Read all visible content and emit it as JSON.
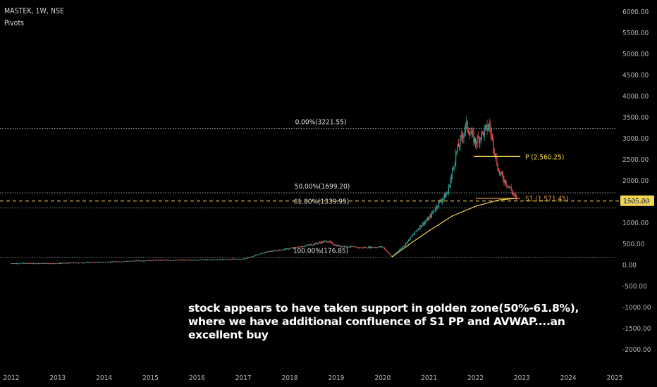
{
  "header": {
    "title": "MASTEK, 1W, NSE",
    "indicator": "Pivots"
  },
  "chart_data": {
    "type": "candlestick",
    "symbol": "MASTEK",
    "timeframe": "1W",
    "exchange": "NSE",
    "y_ticks": [
      "6000.00",
      "5500.00",
      "5000.00",
      "4500.00",
      "4000.00",
      "3500.00",
      "3000.00",
      "2500.00",
      "2000.00",
      "1500.00",
      "1000.00",
      "500.00",
      "0.00",
      "-500.00",
      "-1000.00",
      "-1500.00",
      "-2000.00"
    ],
    "ylim": [
      -2300,
      6200
    ],
    "x_ticks": [
      "2012",
      "2013",
      "2014",
      "2015",
      "2016",
      "2017",
      "2018",
      "2019",
      "2020",
      "2021",
      "2022",
      "2023",
      "2024",
      "2025"
    ],
    "price_series": [
      {
        "date": "2012.0",
        "value": 30
      },
      {
        "date": "2013.0",
        "value": 30
      },
      {
        "date": "2014.0",
        "value": 60
      },
      {
        "date": "2015.0",
        "value": 100
      },
      {
        "date": "2016.0",
        "value": 110
      },
      {
        "date": "2017.0",
        "value": 130
      },
      {
        "date": "2017.5",
        "value": 300
      },
      {
        "date": "2018.0",
        "value": 380
      },
      {
        "date": "2018.5",
        "value": 480
      },
      {
        "date": "2018.8",
        "value": 560
      },
      {
        "date": "2019.0",
        "value": 450
      },
      {
        "date": "2019.5",
        "value": 400
      },
      {
        "date": "2020.0",
        "value": 420
      },
      {
        "date": "2020.2",
        "value": 180
      },
      {
        "date": "2020.5",
        "value": 500
      },
      {
        "date": "2020.8",
        "value": 900
      },
      {
        "date": "2021.0",
        "value": 1100
      },
      {
        "date": "2021.2",
        "value": 1450
      },
      {
        "date": "2021.4",
        "value": 1700
      },
      {
        "date": "2021.6",
        "value": 2700
      },
      {
        "date": "2021.8",
        "value": 3300
      },
      {
        "date": "2022.0",
        "value": 2900
      },
      {
        "date": "2022.3",
        "value": 3300
      },
      {
        "date": "2022.5",
        "value": 2200
      },
      {
        "date": "2022.75",
        "value": 1800
      },
      {
        "date": "2022.9",
        "value": 1505
      }
    ],
    "avwap": [
      {
        "date": "2020.2",
        "value": 180
      },
      {
        "date": "2020.6",
        "value": 500
      },
      {
        "date": "2021.0",
        "value": 800
      },
      {
        "date": "2021.5",
        "value": 1150
      },
      {
        "date": "2022.0",
        "value": 1380
      },
      {
        "date": "2022.5",
        "value": 1530
      },
      {
        "date": "2022.9",
        "value": 1571
      }
    ],
    "fib_levels": [
      {
        "label": "0.00%(3221.55)",
        "value": 3221.55,
        "color": "#b2b5be",
        "style": "dotted"
      },
      {
        "label": "50.00%(1699.20)",
        "value": 1699.2,
        "color": "#b2b5be",
        "style": "dotted"
      },
      {
        "label": "61.80%(1339.95)",
        "value": 1339.95,
        "color": "#b2b5be",
        "style": "dotted"
      },
      {
        "label": "100.00%(176.85)",
        "value": 176.85,
        "color": "#b2b5be",
        "style": "dotted"
      }
    ],
    "pivots": [
      {
        "label": "P (2,560.25)",
        "value": 2560.25,
        "color": "#f5d651"
      },
      {
        "label": "S1 (1,571.45)",
        "value": 1571.45,
        "color": "#e8a33d"
      }
    ],
    "current_price": {
      "label": "1505.00",
      "value": 1505,
      "color": "#f5d651"
    },
    "colors": {
      "up": "#26a69a",
      "down": "#ef5350",
      "avwap": "#f5d651",
      "background": "#000000"
    }
  },
  "annotation": "stock appears to have taken support in golden zone(50%-61.8%), where we have additional confluence of S1 PP and AVWAP....an excellent buy"
}
